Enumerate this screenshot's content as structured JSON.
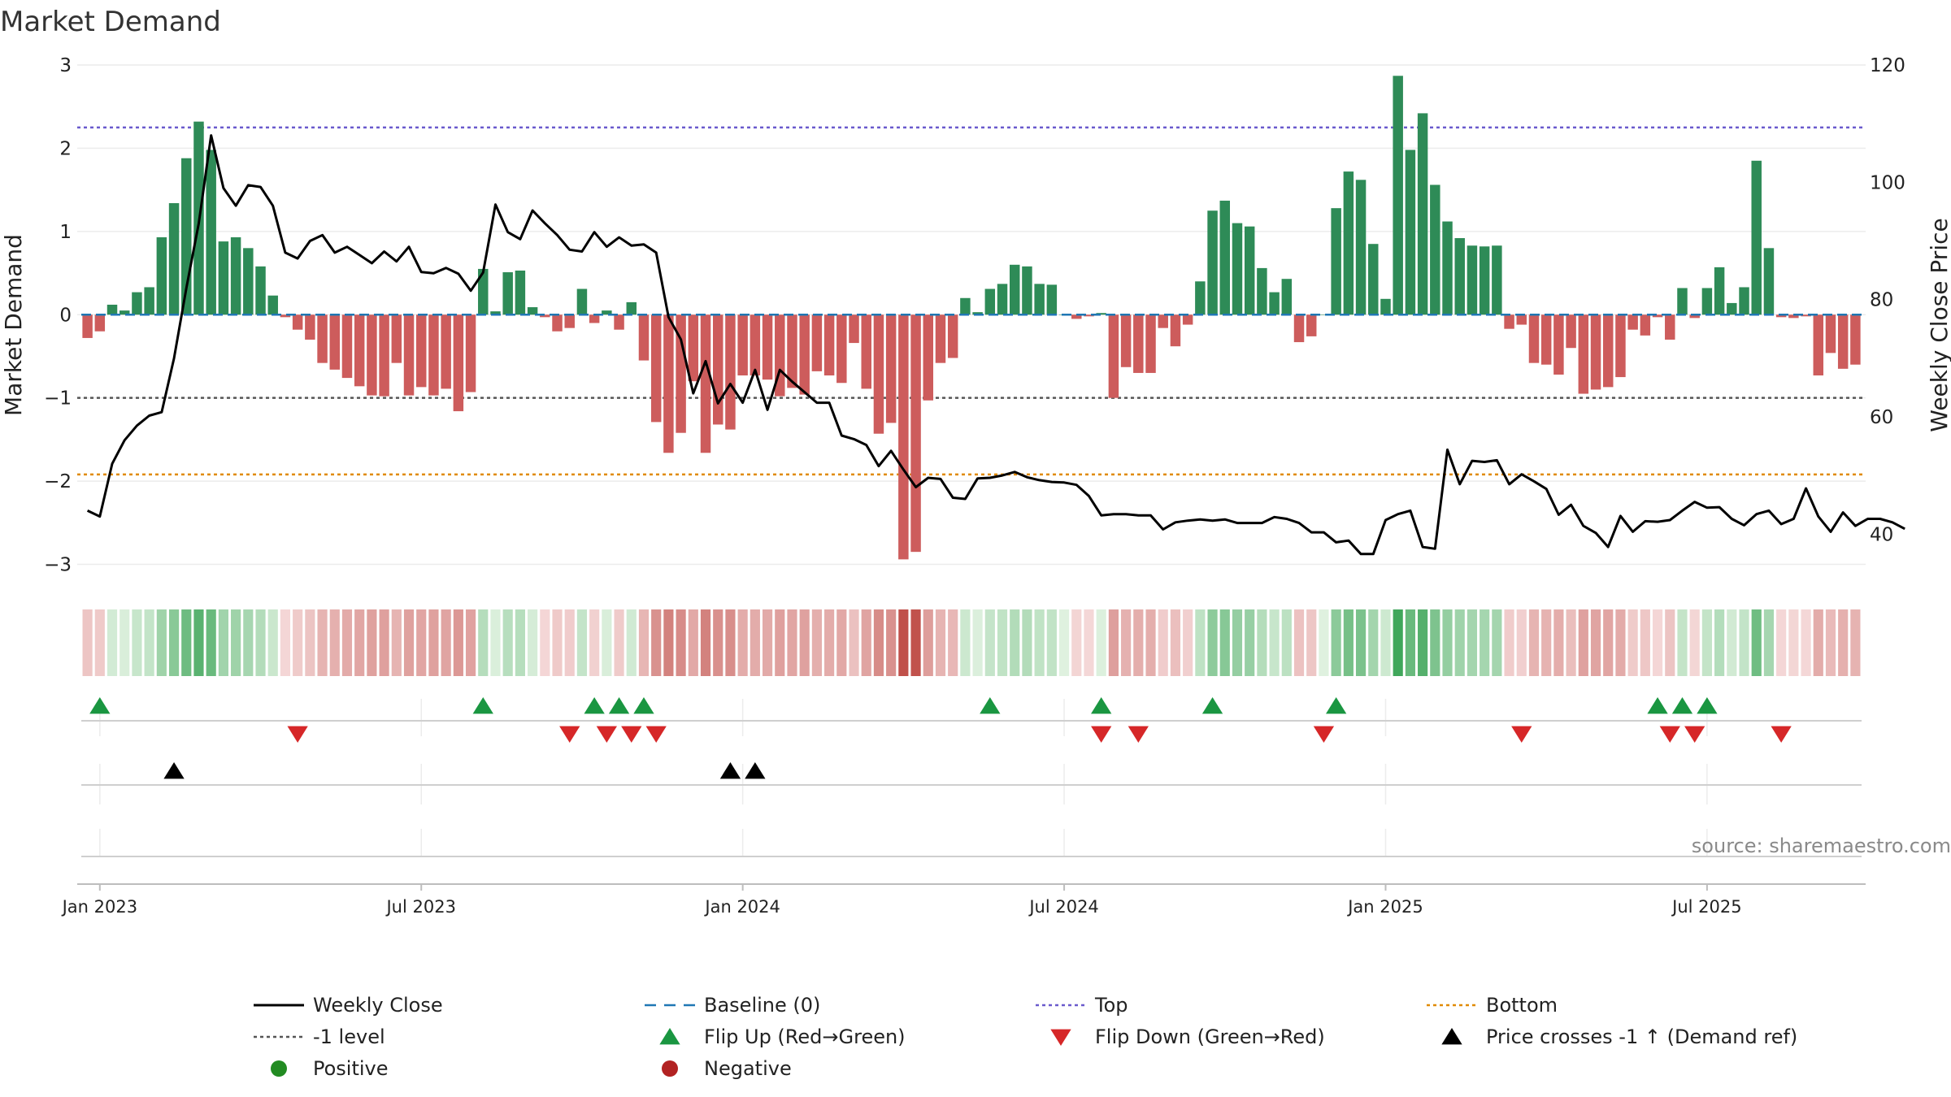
{
  "chart_data": {
    "type": "bar",
    "title": "Market Demand",
    "ylabel": "Market Demand",
    "y2label": "Weekly Close Price",
    "ylim": [
      -3.2,
      3.0
    ],
    "y2lim": [
      32,
      120
    ],
    "yticks": [
      -3,
      -2,
      -1,
      0,
      1,
      2,
      3
    ],
    "yticklabels": [
      "−3",
      "−2",
      "−1",
      "0",
      "1",
      "2",
      "3"
    ],
    "y2ticks": [
      40,
      60,
      80,
      100,
      120
    ],
    "xticks": [
      "Jan 2023",
      "Jul 2023",
      "Jan 2024",
      "Jul 2024",
      "Jan 2025",
      "Jul 2025"
    ],
    "top_level": 2.25,
    "bottom_level": -1.92,
    "minus_one_level": -1,
    "source_note": "source: sharemaestro.com",
    "colors": {
      "positive_bar": "#2e8b57",
      "negative_bar": "#cd5c5c",
      "close": "#000000",
      "baseline": "#1f77b4",
      "top": "#6a5acd",
      "bottom": "#e08a00",
      "minus_one": "#555555",
      "flip_up": "#1a9641",
      "flip_down": "#d62728",
      "cross": "#000000"
    },
    "demand": [
      -0.28,
      -0.2,
      0.12,
      0.05,
      0.27,
      0.33,
      0.93,
      1.34,
      1.88,
      2.32,
      1.98,
      0.88,
      0.93,
      0.8,
      0.58,
      0.23,
      -0.03,
      -0.18,
      -0.3,
      -0.58,
      -0.66,
      -0.76,
      -0.86,
      -0.97,
      -0.98,
      -0.58,
      -0.97,
      -0.87,
      -0.97,
      -0.89,
      -1.16,
      -0.93,
      0.55,
      0.04,
      0.51,
      0.53,
      0.09,
      -0.03,
      -0.2,
      -0.16,
      0.31,
      -0.1,
      0.05,
      -0.18,
      0.15,
      -0.55,
      -1.29,
      -1.66,
      -1.42,
      -0.8,
      -1.66,
      -1.32,
      -1.38,
      -0.73,
      -0.73,
      -0.78,
      -0.98,
      -0.88,
      -0.96,
      -0.68,
      -0.73,
      -0.82,
      -0.34,
      -0.89,
      -1.43,
      -1.3,
      -2.94,
      -2.85,
      -1.03,
      -0.58,
      -0.52,
      0.2,
      0.03,
      0.31,
      0.37,
      0.6,
      0.58,
      0.37,
      0.36,
      0.0,
      -0.05,
      -0.02,
      0.02,
      -1.0,
      -0.63,
      -0.7,
      -0.7,
      -0.16,
      -0.38,
      -0.12,
      0.4,
      1.25,
      1.37,
      1.1,
      1.06,
      0.56,
      0.27,
      0.43,
      -0.33,
      -0.26,
      0.0,
      1.28,
      1.72,
      1.62,
      0.85,
      0.19,
      2.87,
      1.98,
      2.42,
      1.56,
      1.12,
      0.92,
      0.83,
      0.82,
      0.83,
      -0.17,
      -0.12,
      -0.58,
      -0.6,
      -0.72,
      -0.4,
      -0.95,
      -0.9,
      -0.87,
      -0.75,
      -0.18,
      -0.25,
      -0.03,
      -0.3,
      0.32,
      -0.04,
      0.32,
      0.57,
      0.14,
      0.33,
      1.85,
      0.8,
      -0.03,
      -0.04,
      -0.02,
      -0.73,
      -0.46,
      -0.65,
      -0.6
    ],
    "weekly_close": [
      44,
      43,
      52,
      56,
      58.5,
      60.2,
      60.8,
      70,
      82,
      93,
      108,
      99,
      96,
      99.5,
      99.2,
      96,
      88,
      87,
      90,
      91,
      88,
      89,
      87.6,
      86.2,
      88.2,
      86.5,
      89,
      84.7,
      84.5,
      85.4,
      84.4,
      81.5,
      84.6,
      96.2,
      91.5,
      90.3,
      95.2,
      93,
      91,
      88.5,
      88.2,
      91.5,
      89,
      90.6,
      89.2,
      89.4,
      88,
      77,
      73.2,
      64,
      69.5,
      62.3,
      65.6,
      62.4,
      68,
      61.2,
      68,
      66,
      64.2,
      62.4,
      62.4,
      56.8,
      56.2,
      55.2,
      51.6,
      54.2,
      51,
      48,
      49.6,
      49.4,
      46.2,
      46,
      49.5,
      49.6,
      50,
      50.6,
      49.7,
      49.2,
      48.9,
      48.8,
      48.4,
      46.5,
      43.2,
      43.4,
      43.4,
      43.2,
      43.2,
      40.8,
      42,
      42.3,
      42.5,
      42.3,
      42.5,
      41.9,
      41.9,
      41.9,
      42.9,
      42.6,
      41.9,
      40.3,
      40.3,
      38.6,
      38.9,
      36.6,
      36.6,
      42.4,
      43.4,
      44,
      37.8,
      37.5,
      54.4,
      48.5,
      52.5,
      52.3,
      52.6,
      48.5,
      50.2,
      49,
      47.7,
      43.3,
      45,
      41.4,
      40.2,
      37.8,
      43.1,
      40.4,
      42.2,
      42.1,
      42.4,
      44,
      45.5,
      44.5,
      44.6,
      42.6,
      41.5,
      43.4,
      44,
      41.7,
      42.6,
      47.8,
      43,
      40.4,
      43.7,
      41.4,
      42.6,
      42.6,
      42,
      40.9
    ]
  },
  "markers": {
    "flip_up_rows": [
      1,
      32,
      41,
      43,
      45,
      73,
      82,
      91,
      101,
      127,
      129,
      131
    ],
    "flip_down_rows": [
      17,
      39,
      42,
      44,
      46,
      82,
      85,
      100,
      116,
      128,
      130,
      137
    ],
    "cross_rows": [
      7,
      52,
      54
    ]
  },
  "x_axis": {
    "first_week": "2022-12-26",
    "tick_dates": [
      "2023-01-02",
      "2023-07-03",
      "2024-01-01",
      "2024-07-01",
      "2024-12-30",
      "2025-06-30"
    ]
  },
  "legend": [
    {
      "label": "Weekly Close",
      "symbol": "solid-line",
      "color": "#000000"
    },
    {
      "label": "Baseline (0)",
      "symbol": "dashed-line",
      "color": "#1f77b4"
    },
    {
      "label": "Top",
      "symbol": "dotted-line",
      "color": "#6a5acd"
    },
    {
      "label": "Bottom",
      "symbol": "dotted-line",
      "color": "#e08a00"
    },
    {
      "label": "-1 level",
      "symbol": "dotted-line",
      "color": "#555555"
    },
    {
      "label": "Flip Up (Red→Green)",
      "symbol": "triangle-up",
      "color": "#1a9641"
    },
    {
      "label": "Flip Down (Green→Red)",
      "symbol": "triangle-down",
      "color": "#d62728"
    },
    {
      "label": "Price crosses -1 ↑ (Demand ref)",
      "symbol": "triangle-up",
      "color": "#000000"
    },
    {
      "label": "Positive",
      "symbol": "circle",
      "color": "#228b22"
    },
    {
      "label": "Negative",
      "symbol": "circle",
      "color": "#b22222"
    }
  ]
}
